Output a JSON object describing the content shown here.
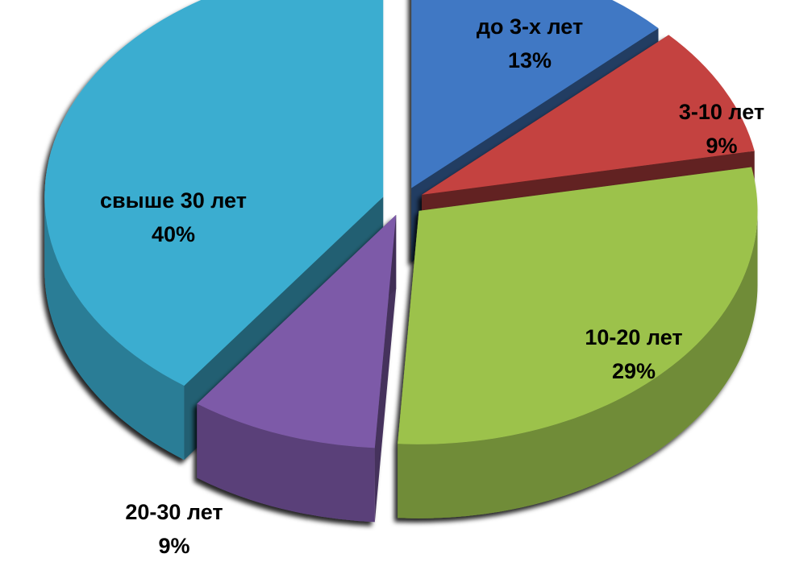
{
  "chart_data": {
    "type": "pie",
    "style": "3d-exploded",
    "legend": "none",
    "slices": [
      {
        "label": "до 3-х лет",
        "value": 13,
        "value_label": "13%",
        "color": "#3F78C4"
      },
      {
        "label": "3-10 лет",
        "value": 9,
        "value_label": "9%",
        "color": "#C4423F"
      },
      {
        "label": "10-20 лет",
        "value": 29,
        "value_label": "29%",
        "color": "#9CC24C"
      },
      {
        "label": "20-30 лет",
        "value": 9,
        "value_label": "9%",
        "color": "#7D5AA8"
      },
      {
        "label": "свыше 30 лет",
        "value": 40,
        "value_label": "40%",
        "color": "#3AADD0"
      }
    ]
  }
}
